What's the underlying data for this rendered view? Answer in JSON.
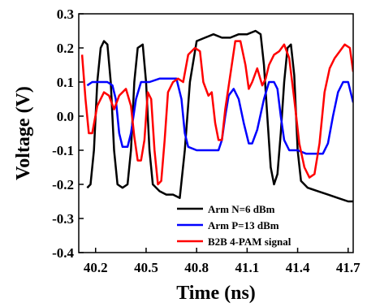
{
  "chart_data": {
    "type": "line",
    "xlabel": "Time (ns)",
    "ylabel": "Voltage (V)",
    "xlim": [
      40.1,
      41.73
    ],
    "ylim": [
      -0.4,
      0.3
    ],
    "xticks": [
      "40.2",
      "40.5",
      "40.8",
      "41.1",
      "41.4",
      "41.7"
    ],
    "yticks": [
      "0.3",
      "0.2",
      "0.1",
      "0.0",
      "-0.1",
      "-0.2",
      "-0.3",
      "-0.4"
    ],
    "legend_position": "bottom-right",
    "series": [
      {
        "name": "Arm N=6 dBm",
        "color": "#000000",
        "points": [
          [
            40.15,
            -0.21
          ],
          [
            40.17,
            -0.2
          ],
          [
            40.19,
            -0.1
          ],
          [
            40.21,
            0.1
          ],
          [
            40.23,
            0.2
          ],
          [
            40.25,
            0.22
          ],
          [
            40.27,
            0.21
          ],
          [
            40.29,
            0.1
          ],
          [
            40.31,
            -0.1
          ],
          [
            40.33,
            -0.2
          ],
          [
            40.36,
            -0.21
          ],
          [
            40.39,
            -0.2
          ],
          [
            40.41,
            -0.1
          ],
          [
            40.43,
            0.1
          ],
          [
            40.45,
            0.2
          ],
          [
            40.48,
            0.21
          ],
          [
            40.5,
            0.1
          ],
          [
            40.52,
            -0.1
          ],
          [
            40.54,
            -0.2
          ],
          [
            40.58,
            -0.22
          ],
          [
            40.62,
            -0.23
          ],
          [
            40.66,
            -0.23
          ],
          [
            40.7,
            -0.24
          ],
          [
            40.73,
            -0.1
          ],
          [
            40.76,
            0.1
          ],
          [
            40.8,
            0.22
          ],
          [
            40.85,
            0.23
          ],
          [
            40.9,
            0.24
          ],
          [
            40.95,
            0.23
          ],
          [
            41.0,
            0.23
          ],
          [
            41.05,
            0.24
          ],
          [
            41.1,
            0.24
          ],
          [
            41.15,
            0.25
          ],
          [
            41.18,
            0.24
          ],
          [
            41.2,
            0.15
          ],
          [
            41.22,
            0.0
          ],
          [
            41.24,
            -0.15
          ],
          [
            41.26,
            -0.2
          ],
          [
            41.28,
            -0.17
          ],
          [
            41.3,
            -0.05
          ],
          [
            41.32,
            0.1
          ],
          [
            41.34,
            0.2
          ],
          [
            41.36,
            0.21
          ],
          [
            41.38,
            0.12
          ],
          [
            41.4,
            -0.1
          ],
          [
            41.42,
            -0.19
          ],
          [
            41.46,
            -0.21
          ],
          [
            41.52,
            -0.22
          ],
          [
            41.58,
            -0.23
          ],
          [
            41.64,
            -0.24
          ],
          [
            41.7,
            -0.25
          ],
          [
            41.73,
            -0.25
          ]
        ]
      },
      {
        "name": "Arm P=13 dBm",
        "color": "#0000ff",
        "points": [
          [
            40.15,
            0.09
          ],
          [
            40.18,
            0.1
          ],
          [
            40.22,
            0.1
          ],
          [
            40.27,
            0.1
          ],
          [
            40.3,
            0.09
          ],
          [
            40.32,
            0.05
          ],
          [
            40.34,
            -0.05
          ],
          [
            40.36,
            -0.09
          ],
          [
            40.39,
            -0.09
          ],
          [
            40.41,
            -0.05
          ],
          [
            40.44,
            0.05
          ],
          [
            40.47,
            0.1
          ],
          [
            40.52,
            0.1
          ],
          [
            40.58,
            0.11
          ],
          [
            40.64,
            0.11
          ],
          [
            40.68,
            0.11
          ],
          [
            40.71,
            0.05
          ],
          [
            40.73,
            -0.05
          ],
          [
            40.75,
            -0.09
          ],
          [
            40.8,
            -0.1
          ],
          [
            40.86,
            -0.1
          ],
          [
            40.9,
            -0.1
          ],
          [
            40.93,
            -0.1
          ],
          [
            40.95,
            -0.07
          ],
          [
            40.97,
            0.0
          ],
          [
            40.99,
            0.06
          ],
          [
            41.02,
            0.08
          ],
          [
            41.05,
            0.05
          ],
          [
            41.08,
            -0.02
          ],
          [
            41.11,
            -0.08
          ],
          [
            41.13,
            -0.08
          ],
          [
            41.16,
            -0.04
          ],
          [
            41.2,
            0.05
          ],
          [
            41.23,
            0.1
          ],
          [
            41.26,
            0.1
          ],
          [
            41.28,
            0.08
          ],
          [
            41.3,
            0.0
          ],
          [
            41.32,
            -0.07
          ],
          [
            41.35,
            -0.1
          ],
          [
            41.4,
            -0.1
          ],
          [
            41.45,
            -0.11
          ],
          [
            41.5,
            -0.11
          ],
          [
            41.55,
            -0.11
          ],
          [
            41.58,
            -0.08
          ],
          [
            41.61,
            0.0
          ],
          [
            41.64,
            0.07
          ],
          [
            41.67,
            0.1
          ],
          [
            41.7,
            0.1
          ],
          [
            41.73,
            0.04
          ]
        ]
      },
      {
        "name": "B2B 4-PAM signal",
        "color": "#ff0000",
        "points": [
          [
            40.12,
            0.18
          ],
          [
            40.14,
            0.05
          ],
          [
            40.16,
            -0.05
          ],
          [
            40.18,
            -0.05
          ],
          [
            40.21,
            0.03
          ],
          [
            40.25,
            0.07
          ],
          [
            40.28,
            0.06
          ],
          [
            40.31,
            0.02
          ],
          [
            40.34,
            0.06
          ],
          [
            40.38,
            0.08
          ],
          [
            40.41,
            0.03
          ],
          [
            40.43,
            -0.06
          ],
          [
            40.45,
            -0.13
          ],
          [
            40.47,
            -0.13
          ],
          [
            40.49,
            -0.07
          ],
          [
            40.51,
            0.07
          ],
          [
            40.53,
            0.05
          ],
          [
            40.55,
            -0.1
          ],
          [
            40.57,
            -0.2
          ],
          [
            40.59,
            -0.19
          ],
          [
            40.61,
            -0.07
          ],
          [
            40.63,
            0.07
          ],
          [
            40.66,
            0.1
          ],
          [
            40.69,
            0.11
          ],
          [
            40.72,
            0.1
          ],
          [
            40.75,
            0.18
          ],
          [
            40.79,
            0.2
          ],
          [
            40.82,
            0.19
          ],
          [
            40.84,
            0.1
          ],
          [
            40.87,
            0.06
          ],
          [
            40.89,
            0.07
          ],
          [
            40.91,
            -0.02
          ],
          [
            40.93,
            -0.07
          ],
          [
            40.95,
            -0.07
          ],
          [
            40.97,
            0.02
          ],
          [
            41.0,
            0.12
          ],
          [
            41.03,
            0.22
          ],
          [
            41.06,
            0.22
          ],
          [
            41.09,
            0.15
          ],
          [
            41.11,
            0.08
          ],
          [
            41.13,
            0.1
          ],
          [
            41.16,
            0.14
          ],
          [
            41.19,
            0.09
          ],
          [
            41.21,
            0.11
          ],
          [
            41.23,
            0.15
          ],
          [
            41.26,
            0.18
          ],
          [
            41.29,
            0.19
          ],
          [
            41.32,
            0.21
          ],
          [
            41.35,
            0.17
          ],
          [
            41.38,
            0.05
          ],
          [
            41.41,
            -0.08
          ],
          [
            41.44,
            -0.15
          ],
          [
            41.47,
            -0.18
          ],
          [
            41.5,
            -0.17
          ],
          [
            41.53,
            -0.08
          ],
          [
            41.56,
            0.07
          ],
          [
            41.59,
            0.14
          ],
          [
            41.62,
            0.17
          ],
          [
            41.65,
            0.19
          ],
          [
            41.68,
            0.21
          ],
          [
            41.71,
            0.2
          ],
          [
            41.73,
            0.13
          ]
        ]
      }
    ]
  }
}
